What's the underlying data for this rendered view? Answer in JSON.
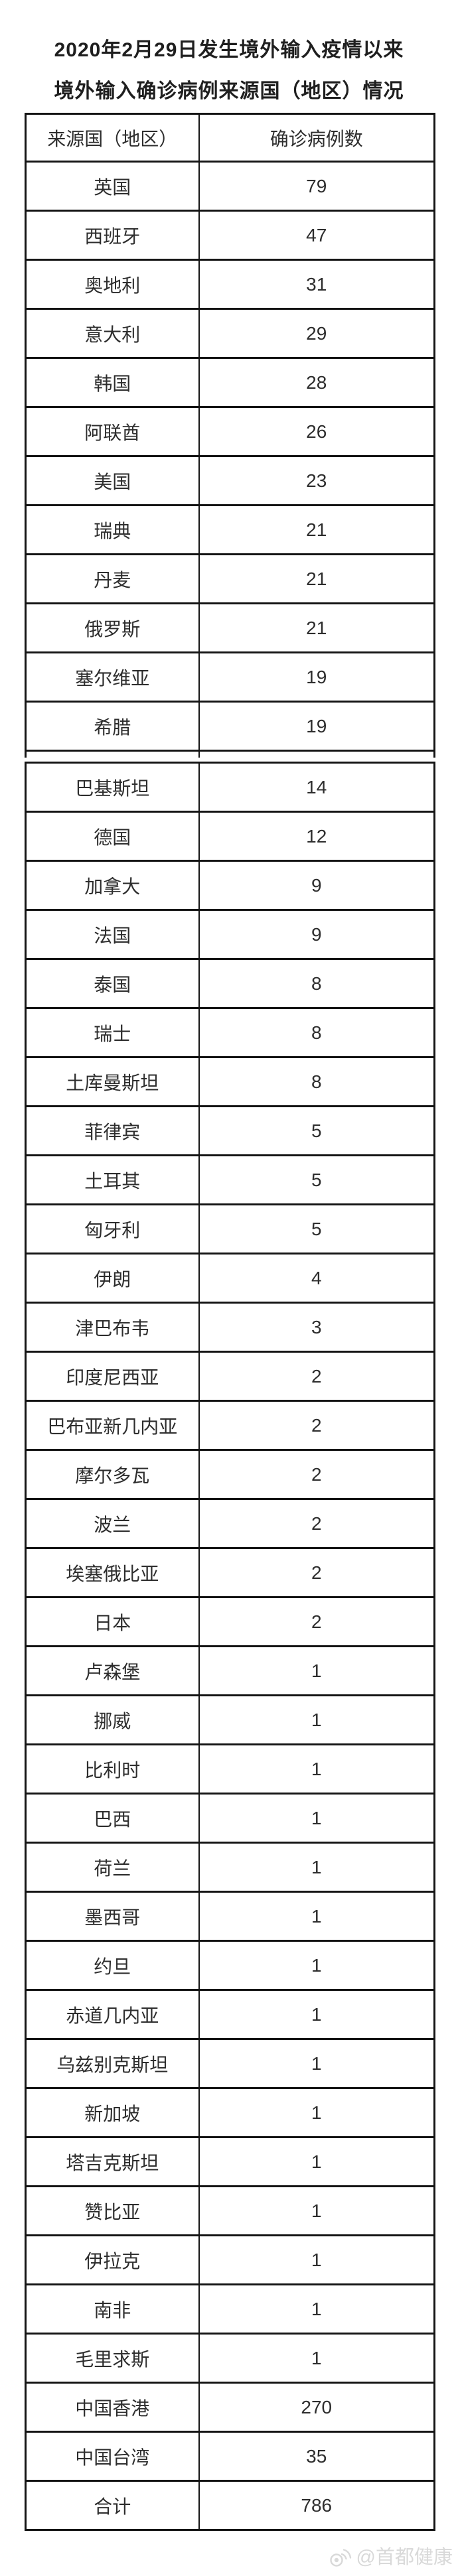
{
  "page": {
    "title_line1": "2020年2月29日发生境外输入疫情以来",
    "title_line2": "境外输入确诊病例来源国（地区）情况",
    "watermark": "@首都健康",
    "watermark_icon": "weibo-icon",
    "background_color": "#ffffff",
    "border_color": "#141414",
    "text_color": "#2d2d2d",
    "watermark_color": "#d9d9d9"
  },
  "chart_data": {
    "type": "table",
    "title": "2020年2月29日发生境外输入疫情以来境外输入确诊病例来源国（地区）情况",
    "columns": [
      "来源国（地区）",
      "确诊病例数"
    ],
    "rows": [
      [
        "英国",
        79
      ],
      [
        "西班牙",
        47
      ],
      [
        "奥地利",
        31
      ],
      [
        "意大利",
        29
      ],
      [
        "韩国",
        28
      ],
      [
        "阿联酋",
        26
      ],
      [
        "美国",
        23
      ],
      [
        "瑞典",
        21
      ],
      [
        "丹麦",
        21
      ],
      [
        "俄罗斯",
        21
      ],
      [
        "塞尔维亚",
        19
      ],
      [
        "希腊",
        19
      ],
      [
        "巴基斯坦",
        14
      ],
      [
        "德国",
        12
      ],
      [
        "加拿大",
        9
      ],
      [
        "法国",
        9
      ],
      [
        "泰国",
        8
      ],
      [
        "瑞士",
        8
      ],
      [
        "土库曼斯坦",
        8
      ],
      [
        "菲律宾",
        5
      ],
      [
        "土耳其",
        5
      ],
      [
        "匈牙利",
        5
      ],
      [
        "伊朗",
        4
      ],
      [
        "津巴布韦",
        3
      ],
      [
        "印度尼西亚",
        2
      ],
      [
        "巴布亚新几内亚",
        2
      ],
      [
        "摩尔多瓦",
        2
      ],
      [
        "波兰",
        2
      ],
      [
        "埃塞俄比亚",
        2
      ],
      [
        "日本",
        2
      ],
      [
        "卢森堡",
        1
      ],
      [
        "挪威",
        1
      ],
      [
        "比利时",
        1
      ],
      [
        "巴西",
        1
      ],
      [
        "荷兰",
        1
      ],
      [
        "墨西哥",
        1
      ],
      [
        "约旦",
        1
      ],
      [
        "赤道几内亚",
        1
      ],
      [
        "乌兹别克斯坦",
        1
      ],
      [
        "新加坡",
        1
      ],
      [
        "塔吉克斯坦",
        1
      ],
      [
        "赞比亚",
        1
      ],
      [
        "伊拉克",
        1
      ],
      [
        "南非",
        1
      ],
      [
        "毛里求斯",
        1
      ],
      [
        "中国香港",
        270
      ],
      [
        "中国台湾",
        35
      ]
    ],
    "total": [
      "合计",
      786
    ],
    "seam_after_row": 12,
    "legend_position": "none",
    "grid": true
  }
}
